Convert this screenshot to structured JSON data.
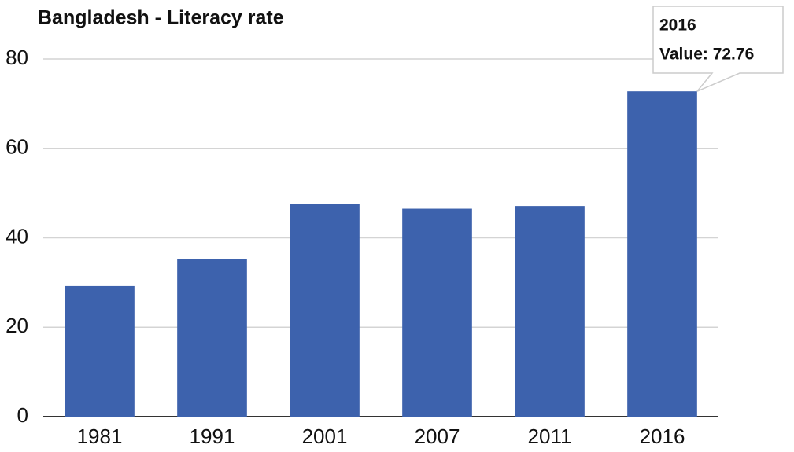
{
  "chart_data": {
    "type": "bar",
    "title": "Bangladesh - Literacy rate",
    "categories": [
      "1981",
      "1991",
      "2001",
      "2007",
      "2011",
      "2016"
    ],
    "values": [
      29.2,
      35.3,
      47.5,
      46.5,
      47.1,
      72.76
    ],
    "color": "#3d62ad",
    "ylim": [
      0,
      80
    ],
    "yticks": [
      0,
      20,
      40,
      60,
      80
    ],
    "grid": true,
    "tooltip": {
      "title": "2016",
      "text": "Value: 72.76"
    }
  }
}
